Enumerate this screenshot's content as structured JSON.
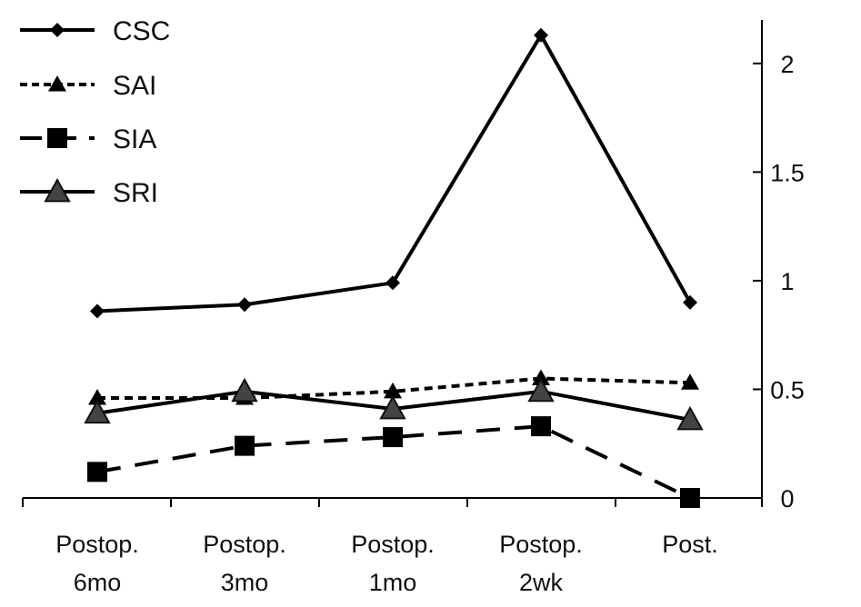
{
  "chart_data": {
    "type": "line",
    "categories": [
      [
        "Postop.",
        "6mo"
      ],
      [
        "Postop.",
        "3mo"
      ],
      [
        "Postop.",
        "1mo"
      ],
      [
        "Postop.",
        "2wk"
      ],
      [
        "Post.",
        ""
      ]
    ],
    "ylim": [
      0,
      2.2
    ],
    "yticks": [
      0,
      0.5,
      1,
      1.5,
      2
    ],
    "ytick_labels": [
      "0",
      "0.5",
      "1",
      "1.5",
      "2"
    ],
    "y_axis_side": "right",
    "grid": false,
    "legend_position": "top-left",
    "series": [
      {
        "name": "CSC",
        "values": [
          0.86,
          0.89,
          0.99,
          2.13,
          0.9
        ],
        "marker": "diamond",
        "line": "solid",
        "color": "#000000"
      },
      {
        "name": "SAI",
        "values": [
          0.46,
          0.46,
          0.49,
          0.55,
          0.53
        ],
        "marker": "triangle-small",
        "line": "dotted",
        "color": "#000000"
      },
      {
        "name": "SIA",
        "values": [
          0.12,
          0.24,
          0.28,
          0.33,
          0.0
        ],
        "marker": "square",
        "line": "dashed",
        "color": "#000000"
      },
      {
        "name": "SRI",
        "values": [
          0.39,
          0.49,
          0.41,
          0.49,
          0.36
        ],
        "marker": "triangle-large",
        "line": "solid",
        "color": "#000000"
      }
    ]
  }
}
